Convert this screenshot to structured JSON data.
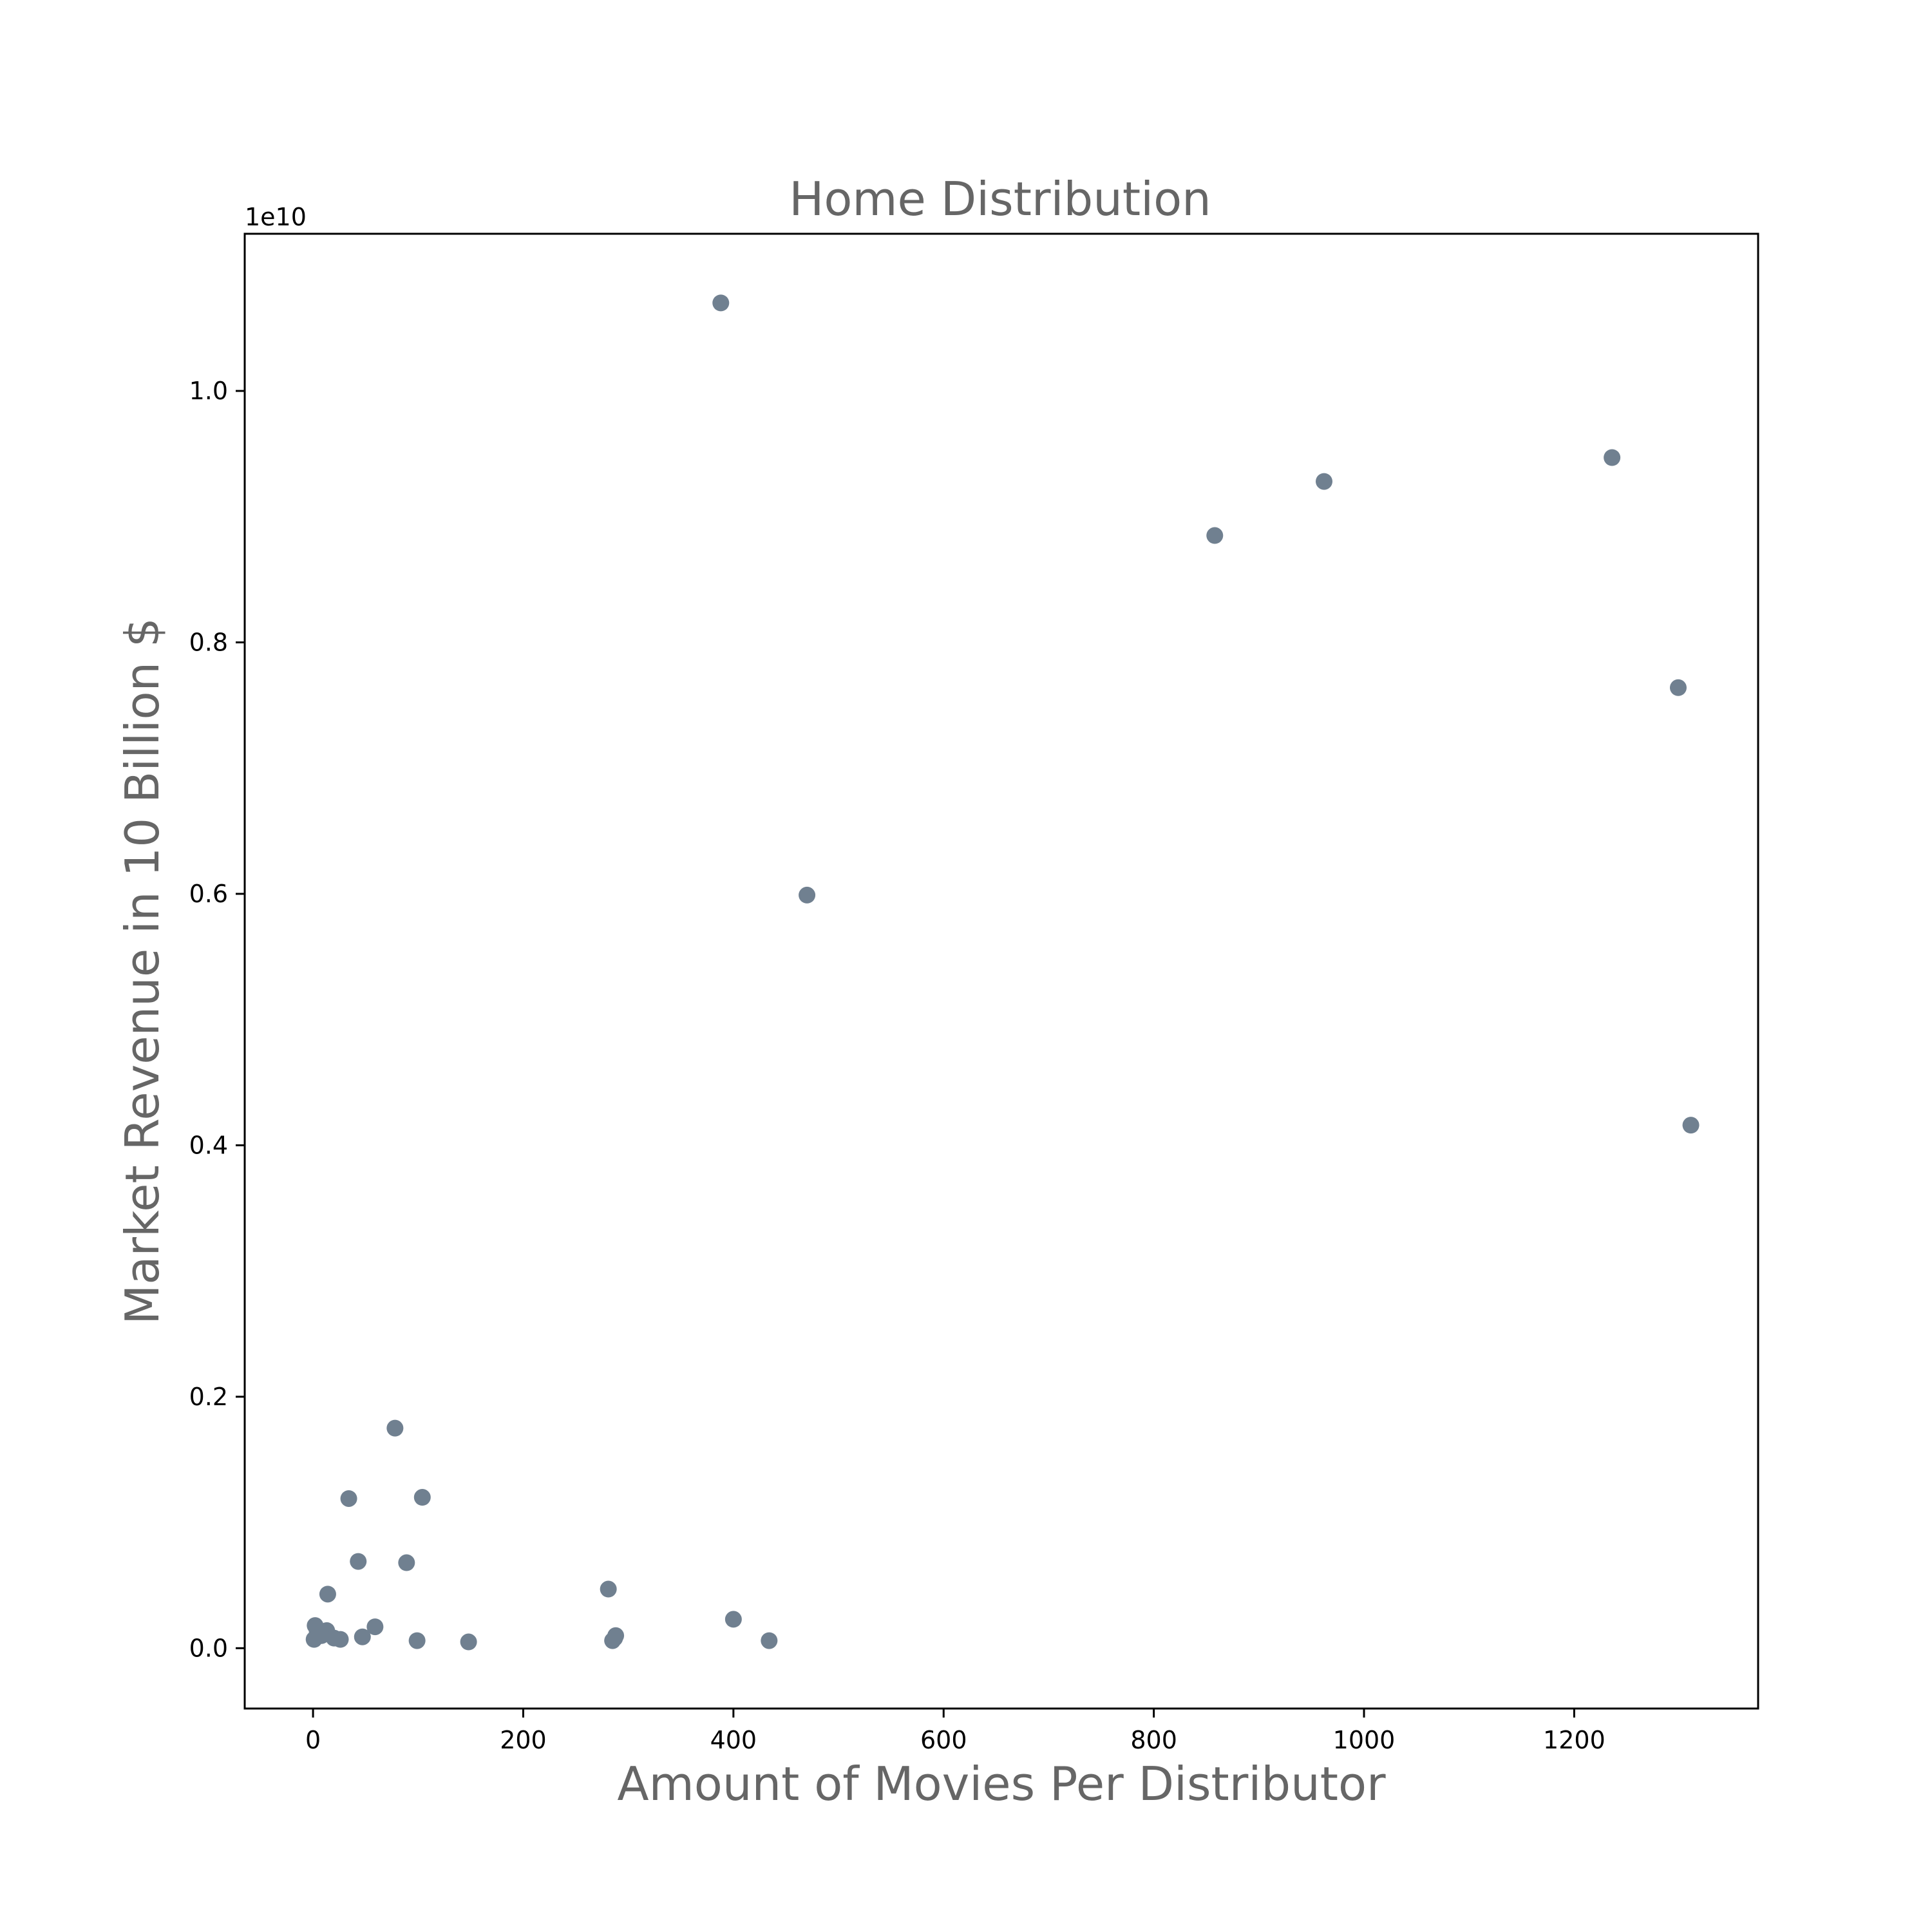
{
  "chart_data": {
    "type": "scatter",
    "title": "Home Distribution",
    "xlabel": "Amount of Movies Per Distributor",
    "ylabel": "Market Revenue in 10 Billion $",
    "y_offset_label": "1e10",
    "xlim": [
      -65,
      1375
    ],
    "ylim": [
      -0.048,
      1.125
    ],
    "xticks": [
      0,
      200,
      400,
      600,
      800,
      1000,
      1200
    ],
    "xtick_labels": [
      "0",
      "200",
      "400",
      "600",
      "800",
      "1000",
      "1200"
    ],
    "yticks": [
      0.0,
      0.2,
      0.4,
      0.6,
      0.8,
      1.0
    ],
    "ytick_labels": [
      "0.0",
      "0.2",
      "0.4",
      "0.6",
      "0.8",
      "1.0"
    ],
    "grid": false,
    "marker_color": "#708090",
    "x": [
      388,
      1236,
      962,
      858,
      1299,
      470,
      1311,
      78,
      104,
      34,
      43,
      89,
      14,
      281,
      400,
      59,
      288,
      287,
      285,
      434,
      148,
      99,
      47,
      26,
      20,
      13,
      8,
      4,
      2,
      1
    ],
    "y": [
      1.07,
      0.947,
      0.928,
      0.885,
      0.764,
      0.599,
      0.416,
      0.175,
      0.12,
      0.119,
      0.069,
      0.068,
      0.043,
      0.047,
      0.023,
      0.017,
      0.01,
      0.008,
      0.006,
      0.006,
      0.005,
      0.006,
      0.009,
      0.007,
      0.008,
      0.014,
      0.01,
      0.013,
      0.018,
      0.007
    ]
  }
}
